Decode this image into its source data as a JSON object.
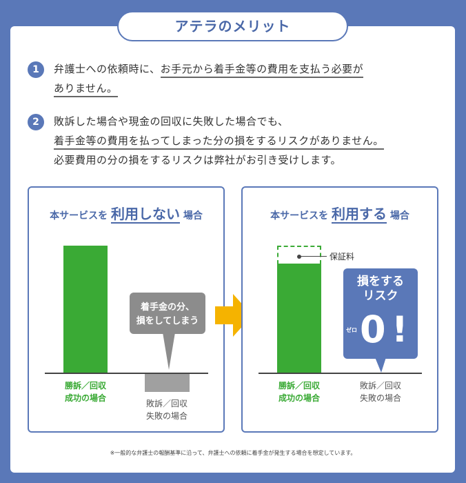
{
  "title": "アテラのメリット",
  "items": [
    {
      "number": "1",
      "lines": [
        "弁護士への依頼時に、",
        "お手元から着手金等の費用を支払う必要が",
        "ありません。"
      ]
    },
    {
      "number": "2",
      "lines": [
        "敗訴した場合や現金の回収に失敗した場合でも、",
        "着手金等の費用を払ってしまった分の損をするリスクがありません。",
        "必要費用の分の損をするリスクは弊社がお引き受けします。"
      ]
    }
  ],
  "left_panel": {
    "prefix": "本サービスを",
    "emph1": "利用",
    "emph2": "しない",
    "suffix": "場合",
    "bubble": [
      "着手金の分、",
      "損をしてしまう"
    ],
    "win_label": [
      "勝訴／回収",
      "成功の場合"
    ],
    "lose_label": [
      "敗訴／回収",
      "失敗の場合"
    ]
  },
  "right_panel": {
    "prefix": "本サービスを",
    "emph1": "利用",
    "emph2": "する",
    "suffix": "場合",
    "fee_label": "保証料",
    "bubble": [
      "損をする",
      "リスク"
    ],
    "zero": "0",
    "zero_ruby": "ゼロ",
    "exclaim": "!",
    "win_label": [
      "勝訴／回収",
      "成功の場合"
    ],
    "lose_label": [
      "敗訴／回収",
      "失敗の場合"
    ]
  },
  "footnote": "※一般的な弁護士の報酬基準に沿って、弁護士への依頼に着手金が発生する場合を想定しています。",
  "colors": {
    "background": "#5a78b8",
    "green": "#3aaa35",
    "gray": "#a0a0a0",
    "arrow": "#f5b300"
  }
}
